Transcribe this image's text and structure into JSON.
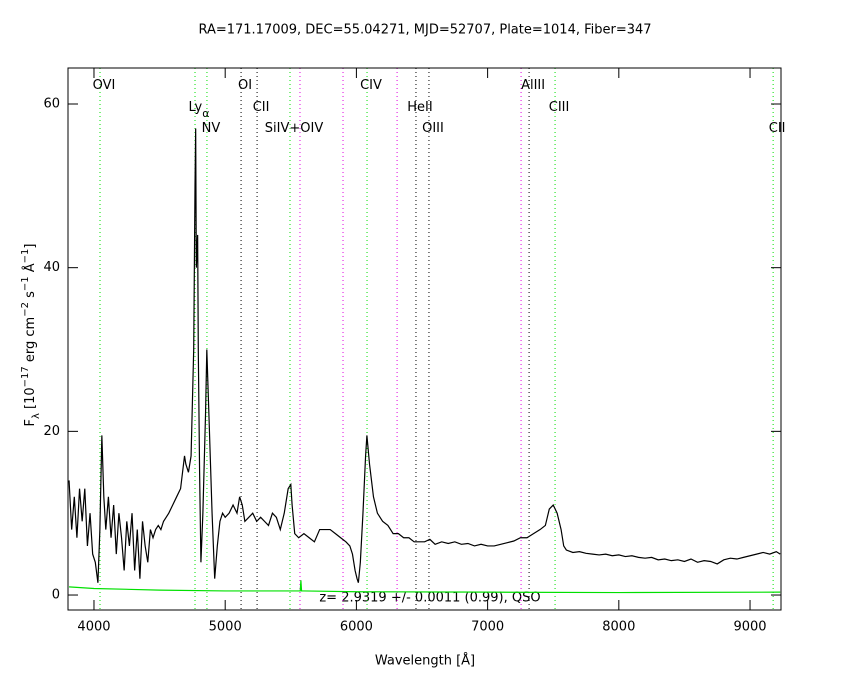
{
  "chart_data": {
    "type": "line",
    "title": "RA=171.17009, DEC=55.04271, MJD=52707, Plate=1014, Fiber=347",
    "xlabel": "Wavelength [Å]",
    "ylabel": [
      {
        "text": "F"
      },
      {
        "text": "λ",
        "sub": true
      },
      {
        "text": " [10"
      },
      {
        "text": "−17",
        "sup": true
      },
      {
        "text": " erg cm"
      },
      {
        "text": "−2",
        "sup": true
      },
      {
        "text": " s"
      },
      {
        "text": "−1",
        "sup": true
      },
      {
        "text": " Å"
      },
      {
        "text": "−1",
        "sup": true
      },
      {
        "text": "]"
      }
    ],
    "annotation": "z= 2.9319 +/- 0.0011 (0.99), QSO",
    "xlim": [
      3802,
      9236
    ],
    "ylim": [
      -1.83,
      64.4
    ],
    "xticks": [
      4000,
      5000,
      6000,
      7000,
      8000,
      9000
    ],
    "yticks": [
      0,
      20,
      40,
      60
    ],
    "series": [
      {
        "name": "flux",
        "color": "#000000",
        "x": [
          3810,
          3830,
          3850,
          3870,
          3890,
          3910,
          3930,
          3950,
          3970,
          3990,
          4010,
          4030,
          4045,
          4060,
          4075,
          4090,
          4110,
          4130,
          4150,
          4170,
          4190,
          4210,
          4230,
          4250,
          4270,
          4290,
          4310,
          4330,
          4350,
          4370,
          4390,
          4410,
          4430,
          4450,
          4470,
          4490,
          4510,
          4530,
          4550,
          4570,
          4600,
          4630,
          4660,
          4690,
          4700,
          4720,
          4740,
          4760,
          4770,
          4775,
          4780,
          4790,
          4795,
          4805,
          4815,
          4830,
          4850,
          4860,
          4870,
          4880,
          4900,
          4920,
          4940,
          4960,
          4980,
          5000,
          5030,
          5060,
          5090,
          5110,
          5130,
          5150,
          5180,
          5210,
          5240,
          5270,
          5300,
          5330,
          5360,
          5390,
          5420,
          5450,
          5480,
          5500,
          5510,
          5530,
          5560,
          5600,
          5640,
          5680,
          5720,
          5760,
          5800,
          5840,
          5880,
          5920,
          5950,
          5970,
          5990,
          6005,
          6015,
          6030,
          6050,
          6070,
          6080,
          6100,
          6130,
          6160,
          6200,
          6240,
          6280,
          6320,
          6360,
          6400,
          6440,
          6480,
          6520,
          6560,
          6600,
          6650,
          6700,
          6750,
          6800,
          6850,
          6900,
          6950,
          7000,
          7050,
          7100,
          7150,
          7200,
          7250,
          7300,
          7350,
          7400,
          7440,
          7470,
          7500,
          7530,
          7560,
          7580,
          7600,
          7650,
          7700,
          7750,
          7800,
          7850,
          7900,
          7950,
          8000,
          8050,
          8100,
          8150,
          8200,
          8250,
          8300,
          8350,
          8400,
          8450,
          8500,
          8550,
          8600,
          8650,
          8700,
          8750,
          8800,
          8850,
          8900,
          8950,
          9000,
          9050,
          9100,
          9150,
          9200,
          9230
        ],
        "values": [
          14,
          8,
          12,
          7,
          13,
          9,
          13,
          6,
          10,
          5,
          4,
          1.5,
          8,
          19.5,
          12,
          8,
          12,
          7,
          11,
          5,
          10,
          7,
          3,
          9,
          6,
          10,
          3,
          8,
          2,
          9,
          6,
          4,
          8,
          7,
          8,
          8.5,
          8,
          9,
          9.5,
          10,
          11,
          12,
          13,
          17,
          16,
          15,
          17,
          30,
          50,
          57,
          40,
          44,
          30,
          15,
          4,
          10,
          22,
          30,
          25,
          20,
          10,
          2,
          6,
          9,
          10,
          9.5,
          10,
          11,
          10,
          12,
          11,
          9,
          9.5,
          10,
          9,
          9.5,
          9,
          8.5,
          10,
          9.5,
          8,
          10,
          13,
          13.5,
          11,
          7.5,
          7,
          7.5,
          7,
          6.5,
          8,
          8,
          8,
          7.5,
          7,
          6.5,
          6,
          5,
          3,
          2,
          1.5,
          4,
          10,
          17,
          19.5,
          16,
          12,
          10,
          9,
          8.5,
          7.5,
          7.5,
          7,
          7,
          6.5,
          6.5,
          6.5,
          6.8,
          6.2,
          6.5,
          6.3,
          6.5,
          6.2,
          6.3,
          6.0,
          6.2,
          6.0,
          6.0,
          6.2,
          6.4,
          6.6,
          7,
          7,
          7.5,
          8,
          8.5,
          10.5,
          11,
          10,
          8,
          6,
          5.5,
          5.2,
          5.3,
          5.1,
          5.0,
          4.9,
          5.0,
          4.8,
          4.9,
          4.7,
          4.8,
          4.6,
          4.5,
          4.6,
          4.3,
          4.4,
          4.2,
          4.3,
          4.1,
          4.4,
          4.0,
          4.2,
          4.1,
          3.8,
          4.3,
          4.5,
          4.4,
          4.6,
          4.8,
          5.0,
          5.2,
          5.0,
          5.3,
          5.0
        ]
      },
      {
        "name": "error",
        "color": "#00e000",
        "x": [
          3810,
          4000,
          4500,
          5000,
          5560,
          5572,
          5577,
          5582,
          5600,
          6000,
          7000,
          8000,
          9230
        ],
        "values": [
          1.0,
          0.8,
          0.6,
          0.5,
          0.5,
          0.5,
          1.8,
          0.5,
          0.5,
          0.4,
          0.35,
          0.3,
          0.35
        ]
      }
    ],
    "lines": [
      {
        "label": "OVI",
        "x": 4046,
        "color": "#00e000"
      },
      {
        "label": "Ly",
        "sub": "α",
        "x": 4770,
        "color": "#00e000"
      },
      {
        "label": "NV",
        "x": 4861,
        "color": "#00e000"
      },
      {
        "label": "OI",
        "x": 5121,
        "color": "#000000"
      },
      {
        "label": "CII",
        "x": 5243,
        "color": "#000000"
      },
      {
        "label": "SiIV+OIV",
        "x": 5494,
        "color": "#00e000"
      },
      {
        "label": null,
        "x": 5570,
        "color": "#e000e0"
      },
      {
        "label": null,
        "x": 5898,
        "color": "#e000e0"
      },
      {
        "label": "CIV",
        "x": 6081,
        "color": "#00e000"
      },
      {
        "label": null,
        "x": 6310,
        "color": "#e000e0"
      },
      {
        "label": "HeII",
        "x": 6454,
        "color": "#000000"
      },
      {
        "label": "OIII",
        "x": 6553,
        "color": "#000000"
      },
      {
        "label": null,
        "x": 7255,
        "color": "#e000e0"
      },
      {
        "label": "AlIII",
        "x": 7316,
        "color": "#000000"
      },
      {
        "label": "CIII",
        "x": 7514,
        "color": "#00e000"
      },
      {
        "label": "CII",
        "x": 9176,
        "color": "#00e000"
      }
    ]
  }
}
